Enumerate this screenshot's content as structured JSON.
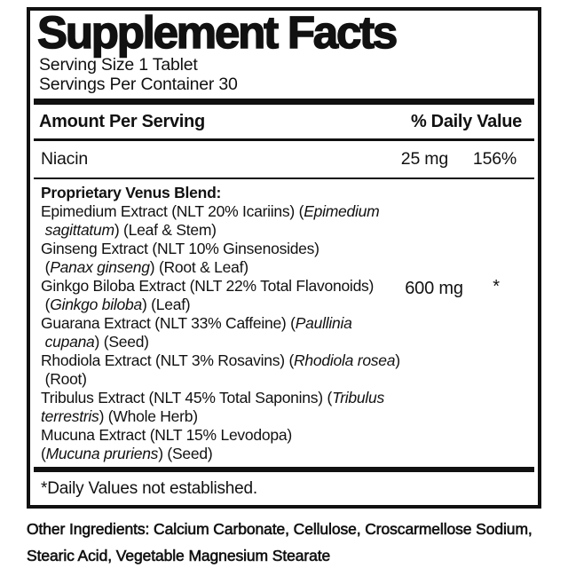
{
  "label": {
    "title": "Supplement Facts",
    "serving_size": "Serving Size 1 Tablet",
    "servings_per_container": "Servings Per Container 30",
    "header": {
      "amount_col": "Amount Per Serving",
      "dv_col": "% Daily Value"
    },
    "niacin": {
      "name": "Niacin",
      "amount": "25 mg",
      "dv": "156%"
    },
    "blend": {
      "heading": "Proprietary Venus Blend:",
      "amount": "600 mg",
      "dv": "*",
      "lines": [
        [
          {
            "t": "Epimedium Extract (NLT 20% Icariins) ("
          },
          {
            "t": "Epimedium",
            "i": true
          }
        ],
        [
          {
            "t": " "
          },
          {
            "t": "sagittatum",
            "i": true
          },
          {
            "t": ") (Leaf & Stem)"
          }
        ],
        [
          {
            "t": "Ginseng Extract (NLT 10% Ginsenosides)"
          }
        ],
        [
          {
            "t": " ("
          },
          {
            "t": "Panax ginseng",
            "i": true
          },
          {
            "t": ") (Root & Leaf)"
          }
        ],
        [
          {
            "t": "Ginkgo Biloba Extract (NLT 22% Total Flavonoids)"
          }
        ],
        [
          {
            "t": " ("
          },
          {
            "t": "Ginkgo biloba",
            "i": true
          },
          {
            "t": ") (Leaf)"
          }
        ],
        [
          {
            "t": "Guarana Extract (NLT 33% Caffeine) ("
          },
          {
            "t": "Paullinia",
            "i": true
          }
        ],
        [
          {
            "t": " "
          },
          {
            "t": "cupana",
            "i": true
          },
          {
            "t": ") (Seed)"
          }
        ],
        [
          {
            "t": "Rhodiola Extract (NLT 3% Rosavins) ("
          },
          {
            "t": "Rhodiola rosea",
            "i": true
          },
          {
            "t": ")"
          }
        ],
        [
          {
            "t": " (Root)"
          }
        ],
        [
          {
            "t": "Tribulus Extract (NLT 45% Total Saponins) ("
          },
          {
            "t": "Tribulus",
            "i": true
          }
        ],
        [
          {
            "t": "terrestris",
            "i": true
          },
          {
            "t": ") (Whole Herb)"
          }
        ],
        [
          {
            "t": "Mucuna Extract (NLT 15% Levodopa)"
          }
        ],
        [
          {
            "t": "("
          },
          {
            "t": "Mucuna pruriens",
            "i": true
          },
          {
            "t": ") (Seed)"
          }
        ]
      ]
    },
    "footnote": "*Daily Values not established.",
    "other_ingredients_lines": [
      "Other Ingredients: Calcium Carbonate, Cellulose, Croscarmellose Sodium,",
      "Stearic Acid, Vegetable Magnesium Stearate"
    ]
  }
}
